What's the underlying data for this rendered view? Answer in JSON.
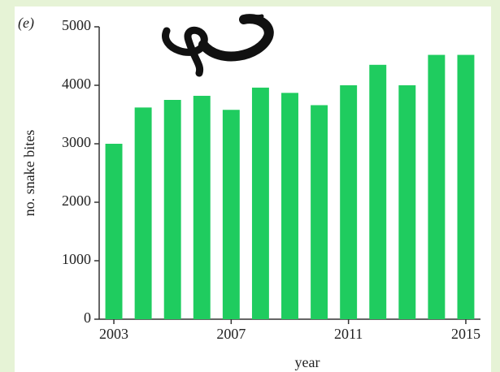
{
  "chart_data": {
    "type": "bar",
    "panel_label": "(e)",
    "categories": [
      "2003",
      null,
      null,
      null,
      "2007",
      null,
      null,
      null,
      "2011",
      null,
      null,
      null,
      "2015"
    ],
    "values": [
      3000,
      3620,
      3750,
      3820,
      3580,
      3960,
      3870,
      3660,
      4000,
      4350,
      4000,
      4520,
      4520
    ],
    "color": "#1fcc5f",
    "ylim": [
      0,
      5000
    ],
    "yticks": [
      0,
      1000,
      2000,
      3000,
      4000,
      5000
    ],
    "xlabel": "year",
    "ylabel": "no. snake bites"
  }
}
